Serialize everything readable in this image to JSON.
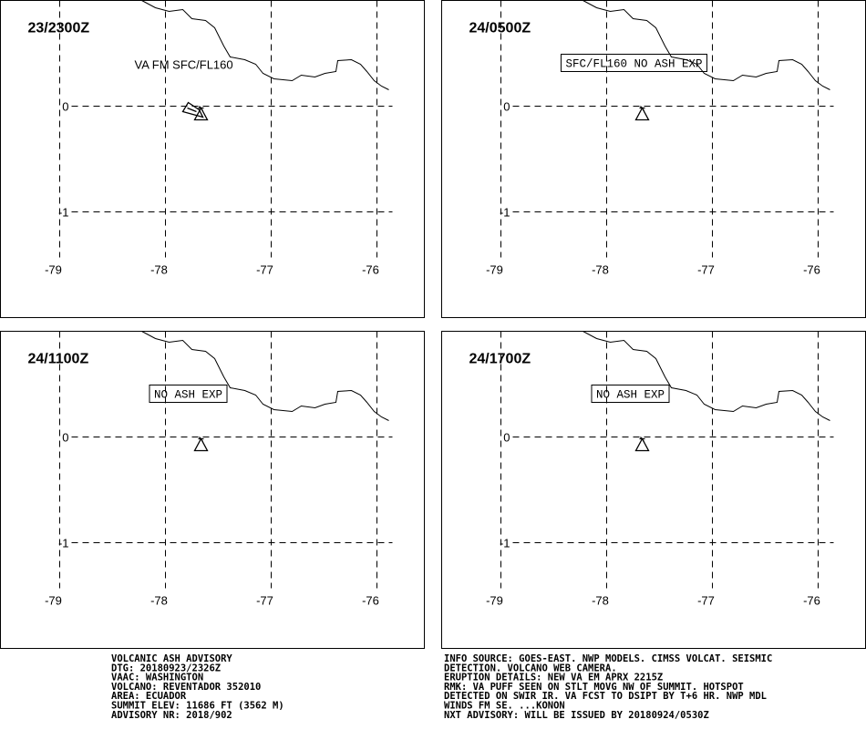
{
  "panels": [
    {
      "title": "23/2300Z",
      "annotation": "VA FM SFC/FL160",
      "boxed": false,
      "lat_labels": [
        "0",
        "-1"
      ],
      "lon_labels": [
        "-79",
        "-78",
        "-77",
        "-76"
      ]
    },
    {
      "title": "24/0500Z",
      "annotation": "SFC/FL160 NO ASH EXP",
      "boxed": true,
      "lat_labels": [
        "0",
        "-1"
      ],
      "lon_labels": [
        "-79",
        "-78",
        "-77",
        "-76"
      ]
    },
    {
      "title": "24/1100Z",
      "annotation": "NO ASH EXP",
      "boxed": true,
      "lat_labels": [
        "0",
        "-1"
      ],
      "lon_labels": [
        "-79",
        "-78",
        "-77",
        "-76"
      ]
    },
    {
      "title": "24/1700Z",
      "annotation": "NO ASH EXP",
      "boxed": true,
      "lat_labels": [
        "0",
        "-1"
      ],
      "lon_labels": [
        "-79",
        "-78",
        "-77",
        "-76"
      ]
    }
  ],
  "advisory_left": [
    "VOLCANIC ASH ADVISORY",
    "DTG: 20180923/2326Z",
    "VAAC: WASHINGTON",
    "VOLCANO: REVENTADOR 352010",
    "AREA: ECUADOR",
    "SUMMIT ELEV: 11686 FT (3562 M)",
    "ADVISORY NR: 2018/902"
  ],
  "advisory_right": [
    "INFO SOURCE: GOES-EAST. NWP MODELS. CIMSS VOLCAT. SEISMIC",
    "DETECTION. VOLCANO WEB CAMERA.",
    "ERUPTION DETAILS: NEW VA EM APRX 2215Z",
    "RMK: VA PUFF SEEN ON STLT MOVG NW OF SUMMIT. HOTSPOT",
    "DETECTED ON SWIR IR. VA FCST TO DSIPT BY T+6 HR. NWP MDL",
    "WINDS FM SE. ...KONON",
    "NXT ADVISORY: WILL BE ISSUED BY 20180924/0530Z"
  ]
}
